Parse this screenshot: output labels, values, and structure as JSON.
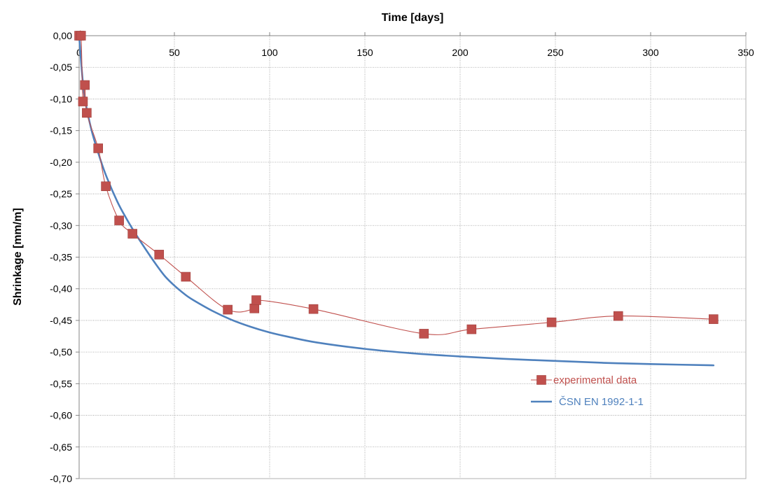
{
  "chart_data": {
    "type": "line",
    "title": "",
    "xlabel": "Time [days]",
    "ylabel": "Shrinkage [mm/m]",
    "xlim": [
      0,
      350
    ],
    "ylim": [
      -0.7,
      0.0
    ],
    "x_ticks": [
      "0",
      "50",
      "100",
      "150",
      "200",
      "250",
      "300",
      "350"
    ],
    "y_ticks": [
      "0,00",
      "-0,05",
      "-0,10",
      "-0,15",
      "-0,20",
      "-0,25",
      "-0,30",
      "-0,35",
      "-0,40",
      "-0,45",
      "-0,50",
      "-0,55",
      "-0,60",
      "-0,65",
      "-0,70"
    ],
    "x_axis_position": "top",
    "grid": true,
    "legend_position": "bottom-right",
    "series": [
      {
        "name": "experimental data",
        "color": "#c0504d",
        "marker": "square",
        "smooth": true,
        "points": [
          [
            0,
            0.0
          ],
          [
            1,
            0.0
          ],
          [
            2,
            -0.104
          ],
          [
            3,
            -0.078
          ],
          [
            4,
            -0.122
          ],
          [
            10,
            -0.178
          ],
          [
            14,
            -0.238
          ],
          [
            21,
            -0.292
          ],
          [
            28,
            -0.313
          ],
          [
            42,
            -0.346
          ],
          [
            56,
            -0.381
          ],
          [
            78,
            -0.433
          ],
          [
            92,
            -0.431
          ],
          [
            93,
            -0.418
          ],
          [
            123,
            -0.432
          ],
          [
            181,
            -0.471
          ],
          [
            206,
            -0.464
          ],
          [
            248,
            -0.453
          ],
          [
            283,
            -0.443
          ],
          [
            333,
            -0.448
          ]
        ]
      },
      {
        "name": "ČSN EN 1992-1-1",
        "color": "#4f81bd",
        "marker": "none",
        "smooth": true,
        "points": [
          [
            0,
            0.0
          ],
          [
            1,
            -0.04
          ],
          [
            2,
            -0.075
          ],
          [
            3,
            -0.1
          ],
          [
            5,
            -0.13
          ],
          [
            7,
            -0.155
          ],
          [
            10,
            -0.185
          ],
          [
            14,
            -0.22
          ],
          [
            20,
            -0.262
          ],
          [
            25,
            -0.29
          ],
          [
            30,
            -0.315
          ],
          [
            35,
            -0.338
          ],
          [
            40,
            -0.36
          ],
          [
            45,
            -0.38
          ],
          [
            50,
            -0.395
          ],
          [
            56,
            -0.41
          ],
          [
            60,
            -0.418
          ],
          [
            70,
            -0.435
          ],
          [
            80,
            -0.449
          ],
          [
            90,
            -0.46
          ],
          [
            100,
            -0.469
          ],
          [
            110,
            -0.476
          ],
          [
            125,
            -0.485
          ],
          [
            150,
            -0.495
          ],
          [
            175,
            -0.502
          ],
          [
            200,
            -0.507
          ],
          [
            225,
            -0.511
          ],
          [
            250,
            -0.514
          ],
          [
            275,
            -0.517
          ],
          [
            300,
            -0.519
          ],
          [
            333,
            -0.521
          ]
        ]
      }
    ]
  }
}
